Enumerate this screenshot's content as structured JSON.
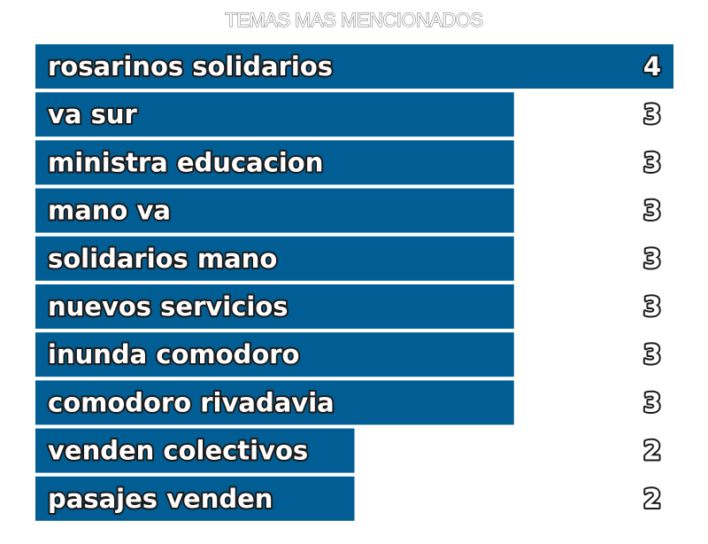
{
  "chart_data": {
    "type": "bar",
    "orientation": "horizontal",
    "title": "TEMAS MAS MENCIONADOS",
    "categories": [
      "rosarinos solidarios",
      "va sur",
      "ministra educacion",
      "mano va",
      "solidarios mano",
      "nuevos servicios",
      "inunda comodoro",
      "comodoro rivadavia",
      "venden colectivos",
      "pasajes venden"
    ],
    "values": [
      4,
      3,
      3,
      3,
      3,
      3,
      3,
      3,
      2,
      2
    ],
    "xlim": [
      0,
      4
    ],
    "bar_color": "#005e94",
    "grid": false,
    "legend": "none"
  }
}
